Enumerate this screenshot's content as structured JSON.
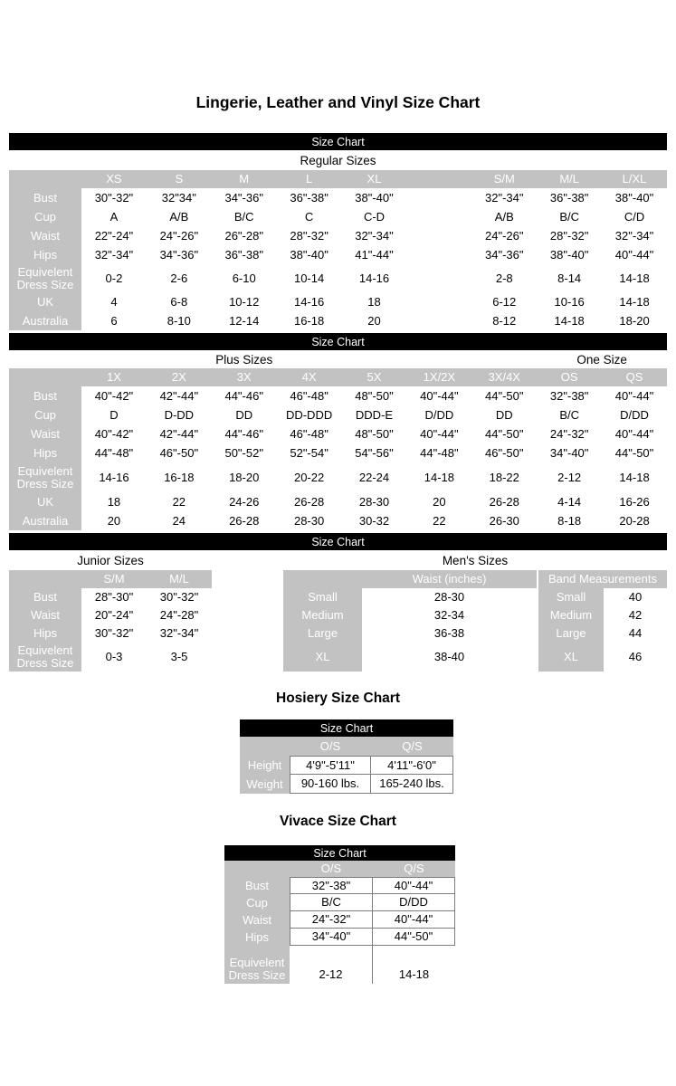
{
  "page": {
    "main_title": "Lingerie, Leather and Vinyl Size Chart",
    "size_chart_bar_label": "Size Chart",
    "hosiery_title": "Hosiery Size Chart",
    "vivace_title": "Vivace Size Chart"
  },
  "colors": {
    "bar_background": "#000000",
    "bar_text": "#ffffff",
    "header_background": "#c2c2c2",
    "header_text": "#ffffff",
    "body_text": "#000000",
    "cell_border": "#7d7d7d"
  },
  "regular_sizes": {
    "section_title": "Regular Sizes",
    "columns": [
      "XS",
      "S",
      "M",
      "L",
      "XL",
      "",
      "S/M",
      "M/L",
      "L/XL"
    ],
    "rows": [
      {
        "label": "Bust",
        "values": [
          "30\"-32\"",
          "32\"34\"",
          "34\"-36\"",
          "36\"-38\"",
          "38\"-40\"",
          "",
          "32\"-34\"",
          "36\"-38\"",
          "38\"-40\""
        ]
      },
      {
        "label": "Cup",
        "values": [
          "A",
          "A/B",
          "B/C",
          "C",
          "C-D",
          "",
          "A/B",
          "B/C",
          "C/D"
        ]
      },
      {
        "label": "Waist",
        "values": [
          "22\"-24\"",
          "24\"-26\"",
          "26\"-28\"",
          "28\"-32\"",
          "32\"-34\"",
          "",
          "24\"-26\"",
          "28\"-32\"",
          "32\"-34\""
        ]
      },
      {
        "label": "Hips",
        "values": [
          "32\"-34\"",
          "34\"-36\"",
          "36\"-38\"",
          "38\"-40\"",
          "41\"-44\"",
          "",
          "34\"-36\"",
          "38\"-40\"",
          "40\"-44\""
        ]
      },
      {
        "label": "Equivelent Dress Size",
        "values": [
          "0-2",
          "2-6",
          "6-10",
          "10-14",
          "14-16",
          "",
          "2-8",
          "8-14",
          "14-18"
        ]
      },
      {
        "label": "UK",
        "values": [
          "4",
          "6-8",
          "10-12",
          "14-16",
          "18",
          "",
          "6-12",
          "10-16",
          "14-18"
        ]
      },
      {
        "label": "Australia",
        "values": [
          "6",
          "8-10",
          "12-14",
          "16-18",
          "20",
          "",
          "8-12",
          "14-18",
          "18-20"
        ]
      }
    ]
  },
  "plus_sizes": {
    "section_title": "Plus Sizes",
    "one_size_title": "One Size",
    "columns": [
      "1X",
      "2X",
      "3X",
      "4X",
      "5X",
      "1X/2X",
      "3X/4X",
      "OS",
      "QS"
    ],
    "rows": [
      {
        "label": "Bust",
        "values": [
          "40\"-42\"",
          "42\"-44\"",
          "44\"-46\"",
          "46\"-48\"",
          "48\"-50\"",
          "40\"-44\"",
          "44\"-50\"",
          "32\"-38\"",
          "40\"-44\""
        ]
      },
      {
        "label": "Cup",
        "values": [
          "D",
          "D-DD",
          "DD",
          "DD-DDD",
          "DDD-E",
          "D/DD",
          "DD",
          "B/C",
          "D/DD"
        ]
      },
      {
        "label": "Waist",
        "values": [
          "40\"-42\"",
          "42\"-44\"",
          "44\"-46\"",
          "46\"-48\"",
          "48\"-50\"",
          "40\"-44\"",
          "44\"-50\"",
          "24\"-32\"",
          "40\"-44\""
        ]
      },
      {
        "label": "Hips",
        "values": [
          "44\"-48\"",
          "46\"-50\"",
          "50\"-52\"",
          "52\"-54\"",
          "54\"-56\"",
          "44\"-48\"",
          "46\"-50\"",
          "34\"-40\"",
          "44\"-50\""
        ]
      },
      {
        "label": "Equivelent Dress Size",
        "values": [
          "14-16",
          "16-18",
          "18-20",
          "20-22",
          "22-24",
          "14-18",
          "18-22",
          "2-12",
          "14-18"
        ]
      },
      {
        "label": "UK",
        "values": [
          "18",
          "22",
          "24-26",
          "26-28",
          "28-30",
          "20",
          "26-28",
          "4-14",
          "16-26"
        ]
      },
      {
        "label": "Australia",
        "values": [
          "20",
          "24",
          "26-28",
          "28-30",
          "30-32",
          "22",
          "26-30",
          "8-18",
          "20-28"
        ]
      }
    ]
  },
  "junior_sizes": {
    "section_title": "Junior Sizes",
    "columns": [
      "S/M",
      "M/L"
    ],
    "rows": [
      {
        "label": "Bust",
        "values": [
          "28\"-30\"",
          "30\"-32\""
        ]
      },
      {
        "label": "Waist",
        "values": [
          "20\"-24\"",
          "24\"-28\""
        ]
      },
      {
        "label": "Hips",
        "values": [
          "30\"-32\"",
          "32\"-34\""
        ]
      },
      {
        "label": "Equivelent Dress Size",
        "values": [
          "0-3",
          "3-5"
        ]
      }
    ]
  },
  "mens_sizes": {
    "section_title": "Men's Sizes",
    "waist_table": {
      "columns": [
        "Waist (inches)"
      ],
      "rows": [
        {
          "label": "Small",
          "values": [
            "28-30"
          ]
        },
        {
          "label": "Medium",
          "values": [
            "32-34"
          ]
        },
        {
          "label": "Large",
          "values": [
            "36-38"
          ]
        },
        {
          "label": "XL",
          "values": [
            "38-40"
          ]
        }
      ]
    },
    "band_table": {
      "columns": [
        "Band Measurements"
      ],
      "rows": [
        {
          "label": "Small",
          "values": [
            "40"
          ]
        },
        {
          "label": "Medium",
          "values": [
            "42"
          ]
        },
        {
          "label": "Large",
          "values": [
            "44"
          ]
        },
        {
          "label": "XL",
          "values": [
            "46"
          ]
        }
      ]
    }
  },
  "hosiery": {
    "columns": [
      "O/S",
      "Q/S"
    ],
    "rows": [
      {
        "label": "Height",
        "values": [
          "4'9\"-5'11\"",
          "4'11\"-6'0\""
        ]
      },
      {
        "label": "Weight",
        "values": [
          "90-160 lbs.",
          "165-240 lbs."
        ]
      }
    ]
  },
  "vivace": {
    "columns": [
      "O/S",
      "Q/S"
    ],
    "rows": [
      {
        "label": "Bust",
        "values": [
          "32\"-38\"",
          "40\"-44\""
        ]
      },
      {
        "label": "Cup",
        "values": [
          "B/C",
          "D/DD"
        ]
      },
      {
        "label": "Waist",
        "values": [
          "24\"-32\"",
          "40\"-44\""
        ]
      },
      {
        "label": "Hips",
        "values": [
          "34\"-40\"",
          "44\"-50\""
        ]
      },
      {
        "label": "Equivelent Dress Size",
        "values": [
          "2-12",
          "14-18"
        ]
      }
    ]
  }
}
